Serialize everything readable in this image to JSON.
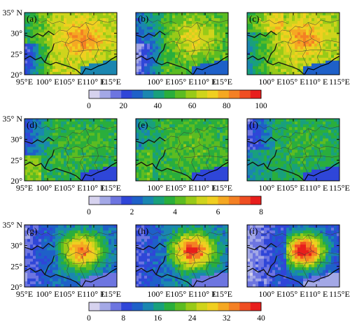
{
  "figure": {
    "x_ticks": [
      "95°E",
      "100° E",
      "105° E",
      "110° E",
      "115°E"
    ],
    "y_ticks": [
      "35° N",
      "30°",
      "25°",
      "20°"
    ],
    "panels": [
      {
        "label": "(a)",
        "row": 0,
        "col": 0,
        "variable": "row1",
        "pattern": "a",
        "mode": "high"
      },
      {
        "label": "(b)",
        "row": 0,
        "col": 1,
        "variable": "row1",
        "pattern": "b",
        "mode": "mid"
      },
      {
        "label": "(c)",
        "row": 0,
        "col": 2,
        "variable": "row1",
        "pattern": "c",
        "mode": "high"
      },
      {
        "label": "(d)",
        "row": 1,
        "col": 0,
        "variable": "row2",
        "pattern": "d",
        "mode": "low"
      },
      {
        "label": "(e)",
        "row": 1,
        "col": 1,
        "variable": "row2",
        "pattern": "e",
        "mode": "low"
      },
      {
        "label": "(f)",
        "row": 1,
        "col": 2,
        "variable": "row2",
        "pattern": "f",
        "mode": "low"
      },
      {
        "label": "(g)",
        "row": 2,
        "col": 0,
        "variable": "row3",
        "pattern": "g",
        "mode": "mid"
      },
      {
        "label": "(h)",
        "row": 2,
        "col": 1,
        "variable": "row3",
        "pattern": "h",
        "mode": "high"
      },
      {
        "label": "(i)",
        "row": 2,
        "col": 2,
        "variable": "row3",
        "pattern": "i",
        "mode": "high"
      }
    ],
    "colorbars": [
      {
        "row": 0,
        "tick_labels": [
          "0",
          "20",
          "40",
          "60",
          "80",
          "100"
        ]
      },
      {
        "row": 1,
        "tick_labels": [
          "0",
          "2",
          "4",
          "6",
          "8"
        ]
      },
      {
        "row": 2,
        "tick_labels": [
          "0",
          "8",
          "16",
          "24",
          "32",
          "40"
        ]
      }
    ],
    "palette": [
      "#d6d2ee",
      "#a3a8e6",
      "#6d75e0",
      "#2f46d8",
      "#1e60c8",
      "#1a86b0",
      "#19a07c",
      "#2aae3c",
      "#5cbc22",
      "#98ca18",
      "#cfd41c",
      "#f0cf20",
      "#f5a822",
      "#f48024",
      "#ef4e22",
      "#e81e1c"
    ],
    "border_color": "#111111",
    "coast_color": "#000000"
  }
}
